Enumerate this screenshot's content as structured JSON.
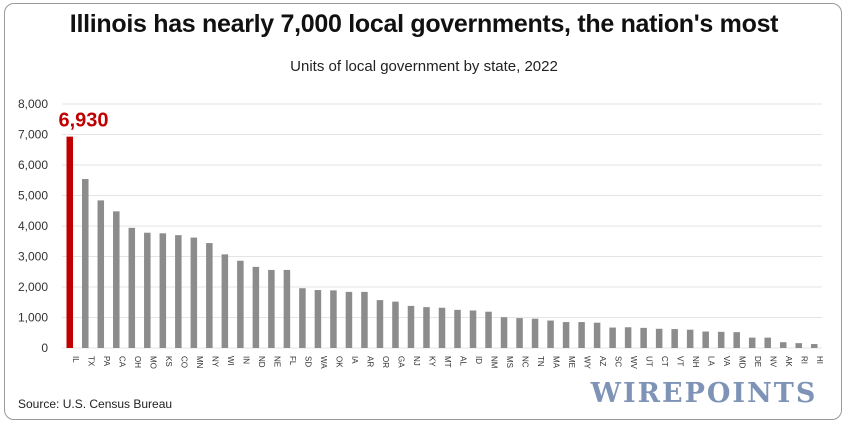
{
  "title": "Illinois has nearly 7,000 local governments, the nation's most",
  "subtitle": "Units of local government by state, 2022",
  "source": "Source: U.S. Census Bureau",
  "watermark": "WIREPOINTS",
  "colors": {
    "highlight": "#c00000",
    "bars": "#8c8c8c",
    "grid": "#e4e4e4"
  },
  "chart_data": {
    "type": "bar",
    "title": "Illinois has nearly 7,000 local governments, the nation's most",
    "subtitle": "Units of local government by state, 2022",
    "xlabel": "",
    "ylabel": "",
    "ylim": [
      0,
      8000
    ],
    "yticks": [
      0,
      1000,
      2000,
      3000,
      4000,
      5000,
      6000,
      7000,
      8000
    ],
    "ytick_labels": [
      "0",
      "1,000",
      "2,000",
      "3,000",
      "4,000",
      "5,000",
      "6,000",
      "7,000",
      "8,000"
    ],
    "grid": true,
    "legend": "none",
    "highlight": {
      "category": "IL",
      "label": "6,930"
    },
    "categories": [
      "IL",
      "TX",
      "PA",
      "CA",
      "OH",
      "MO",
      "KS",
      "CO",
      "MN",
      "NY",
      "WI",
      "IN",
      "ND",
      "NE",
      "FL",
      "SD",
      "WA",
      "OK",
      "IA",
      "AR",
      "OR",
      "GA",
      "NJ",
      "KY",
      "MT",
      "AL",
      "ID",
      "NM",
      "MS",
      "NC",
      "TN",
      "MA",
      "ME",
      "WY",
      "AZ",
      "SC",
      "WV",
      "UT",
      "CT",
      "VT",
      "NH",
      "LA",
      "VA",
      "MD",
      "DE",
      "NV",
      "AK",
      "RI",
      "HI"
    ],
    "values": [
      6930,
      5540,
      4840,
      4480,
      3940,
      3780,
      3760,
      3700,
      3620,
      3440,
      3070,
      2860,
      2660,
      2560,
      2560,
      1960,
      1900,
      1890,
      1840,
      1840,
      1570,
      1520,
      1380,
      1340,
      1320,
      1250,
      1230,
      1190,
      1010,
      980,
      960,
      900,
      850,
      850,
      830,
      670,
      680,
      660,
      630,
      620,
      600,
      540,
      530,
      520,
      340,
      340,
      190,
      160,
      130
    ]
  }
}
